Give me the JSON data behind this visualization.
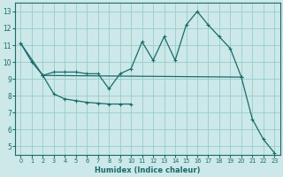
{
  "xlabel": "Humidex (Indice chaleur)",
  "xlim_min": -0.5,
  "xlim_max": 23.5,
  "ylim_min": 4.5,
  "ylim_max": 13.5,
  "xticks": [
    0,
    1,
    2,
    3,
    4,
    5,
    6,
    7,
    8,
    9,
    10,
    11,
    12,
    13,
    14,
    15,
    16,
    17,
    18,
    19,
    20,
    21,
    22,
    23
  ],
  "yticks": [
    5,
    6,
    7,
    8,
    9,
    10,
    11,
    12,
    13
  ],
  "background_color": "#cce8e8",
  "grid_color": "#99cccc",
  "line_color": "#1a6b6b",
  "line1_x": [
    0,
    1,
    2,
    3,
    4,
    5,
    6,
    7,
    8,
    9,
    10,
    11,
    12,
    13,
    14,
    15,
    16,
    17,
    18,
    19,
    20
  ],
  "line1_y": [
    11.1,
    10.0,
    9.2,
    9.4,
    9.4,
    9.4,
    9.3,
    9.3,
    8.4,
    9.3,
    9.6,
    11.2,
    10.1,
    11.5,
    10.1,
    12.2,
    13.0,
    12.2,
    11.5,
    10.8,
    9.1
  ],
  "line2_x": [
    2,
    3,
    4,
    5,
    6,
    7,
    8,
    9,
    10
  ],
  "line2_y": [
    9.2,
    8.1,
    7.8,
    7.7,
    7.6,
    7.55,
    7.5,
    7.5,
    7.5
  ],
  "line3_x": [
    0,
    2,
    20,
    21,
    22,
    23
  ],
  "line3_y": [
    11.1,
    9.2,
    9.1,
    6.6,
    5.4,
    4.6
  ]
}
